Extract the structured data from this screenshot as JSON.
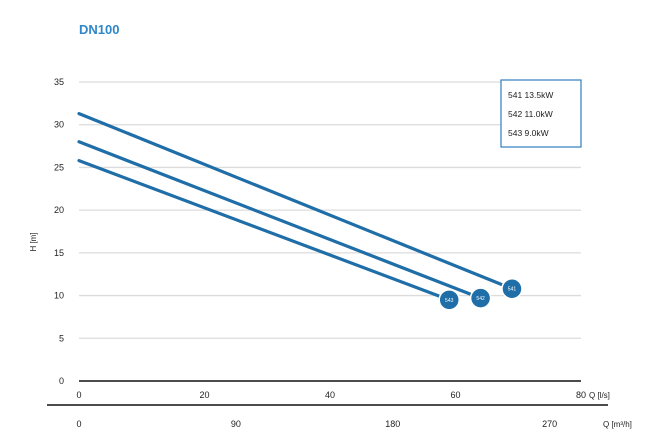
{
  "chart_data": {
    "type": "line",
    "title": "DN100",
    "xlabel": "Q [l/s]",
    "ylabel": "H [m]",
    "x2label": "Q [m³/h]",
    "xlim": [
      0,
      80
    ],
    "ylim": [
      0,
      35
    ],
    "xticks": [
      0,
      20,
      40,
      60,
      80
    ],
    "yticks": [
      0,
      5,
      10,
      15,
      20,
      25,
      30,
      35
    ],
    "x2ticks": [
      "0",
      "90",
      "180",
      "270"
    ],
    "x2tick_values_lps": [
      0,
      25,
      50,
      75
    ],
    "grid": "horizontal",
    "legend_position": "top-right",
    "series": [
      {
        "name": "541 13.5kW",
        "x": [
          0,
          69
        ],
        "values": [
          31.3,
          10.8
        ],
        "marker_label": "541"
      },
      {
        "name": "542 11.0kW",
        "x": [
          0,
          64
        ],
        "values": [
          28.0,
          9.7
        ],
        "marker_label": "542"
      },
      {
        "name": "543 9.0kW",
        "x": [
          0,
          59
        ],
        "values": [
          25.8,
          9.5
        ],
        "marker_label": "543"
      }
    ],
    "colors": {
      "line": "#1f6ea8",
      "title": "#2f87c9",
      "legend_border": "#2f7fc0",
      "grid": "#dcdcdc"
    }
  }
}
